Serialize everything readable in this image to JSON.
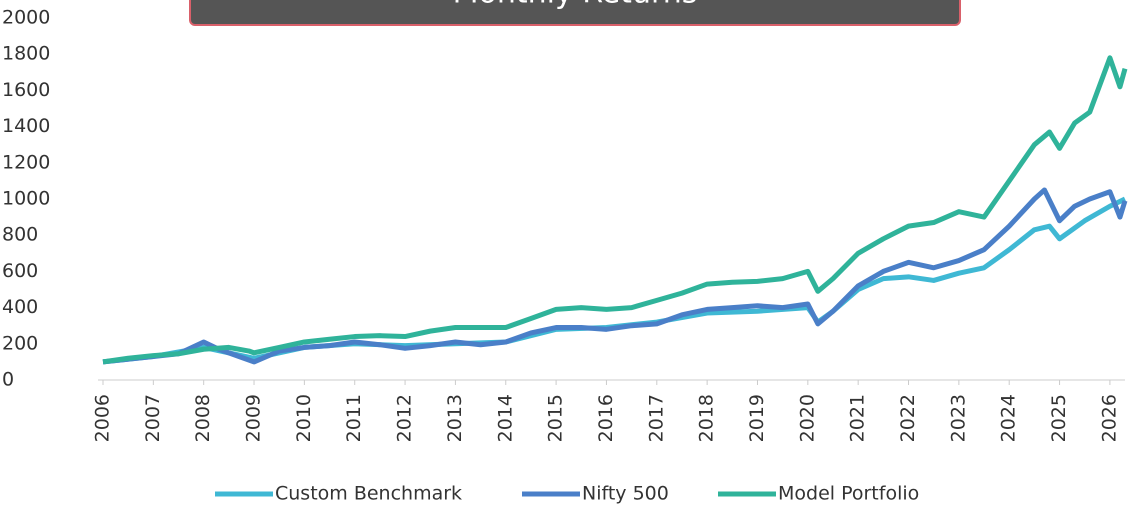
{
  "chart_data": {
    "type": "line",
    "title": "Monthly Returns",
    "xlim": [
      2006,
      2026.3
    ],
    "xticks": [
      2006,
      2007,
      2008,
      2009,
      2010,
      2011,
      2012,
      2013,
      2014,
      2015,
      2016,
      2017,
      2018,
      2019,
      2020,
      2021,
      2022,
      2023,
      2024,
      2025,
      2026
    ],
    "ylim": [
      0,
      2000
    ],
    "yticks": [
      0,
      200,
      400,
      600,
      800,
      1000,
      1200,
      1400,
      1600,
      1800,
      2000
    ],
    "grid": false,
    "legend": "bottom",
    "series": [
      {
        "name": "Custom Benchmark",
        "color": "#3fb8d4",
        "x": [
          2006,
          2007,
          2008,
          2009,
          2010,
          2011,
          2012,
          2013,
          2014,
          2015,
          2016,
          2017,
          2018,
          2019,
          2020,
          2020.2,
          2020.5,
          2021,
          2021.5,
          2022,
          2022.5,
          2023,
          2023.5,
          2024,
          2024.5,
          2024.8,
          2025,
          2025.5,
          2026,
          2026.3
        ],
        "values": [
          100,
          130,
          180,
          120,
          180,
          200,
          190,
          200,
          210,
          280,
          290,
          320,
          370,
          380,
          400,
          320,
          380,
          500,
          560,
          570,
          550,
          590,
          620,
          720,
          830,
          850,
          780,
          880,
          960,
          1000
        ]
      },
      {
        "name": "Nifty 500",
        "color": "#4a7fc8",
        "x": [
          2006,
          2006.5,
          2007,
          2007.5,
          2008,
          2008.3,
          2008.7,
          2009,
          2009.5,
          2010,
          2010.5,
          2011,
          2011.5,
          2012,
          2012.5,
          2013,
          2013.5,
          2014,
          2014.5,
          2015,
          2015.5,
          2016,
          2016.5,
          2017,
          2017.5,
          2018,
          2018.5,
          2019,
          2019.5,
          2020,
          2020.2,
          2020.5,
          2021,
          2021.5,
          2022,
          2022.5,
          2023,
          2023.5,
          2024,
          2024.5,
          2024.7,
          2025,
          2025.3,
          2025.6,
          2026,
          2026.2,
          2026.3
        ],
        "values": [
          100,
          115,
          130,
          145,
          210,
          170,
          130,
          100,
          160,
          180,
          190,
          210,
          195,
          175,
          190,
          210,
          195,
          210,
          260,
          290,
          290,
          280,
          300,
          310,
          360,
          390,
          400,
          410,
          400,
          420,
          310,
          380,
          520,
          600,
          650,
          620,
          660,
          720,
          850,
          1000,
          1050,
          880,
          960,
          1000,
          1040,
          900,
          990
        ]
      },
      {
        "name": "Model Portfolio",
        "color": "#2fb39a",
        "x": [
          2006,
          2006.5,
          2007,
          2007.5,
          2008,
          2008.5,
          2008.9,
          2009,
          2009.5,
          2010,
          2010.5,
          2011,
          2011.5,
          2012,
          2012.5,
          2013,
          2013.5,
          2014,
          2014.5,
          2015,
          2015.5,
          2016,
          2016.5,
          2017,
          2017.5,
          2018,
          2018.5,
          2019,
          2019.5,
          2020,
          2020.2,
          2020.5,
          2021,
          2021.5,
          2022,
          2022.5,
          2023,
          2023.5,
          2024,
          2024.5,
          2024.8,
          2025,
          2025.3,
          2025.6,
          2026,
          2026.2,
          2026.3
        ],
        "values": [
          100,
          120,
          135,
          145,
          170,
          180,
          160,
          150,
          180,
          210,
          225,
          240,
          245,
          240,
          270,
          290,
          290,
          290,
          340,
          390,
          400,
          390,
          400,
          440,
          480,
          530,
          540,
          545,
          560,
          600,
          490,
          560,
          700,
          780,
          850,
          870,
          930,
          900,
          1100,
          1300,
          1370,
          1280,
          1420,
          1480,
          1780,
          1620,
          1720
        ]
      }
    ]
  }
}
